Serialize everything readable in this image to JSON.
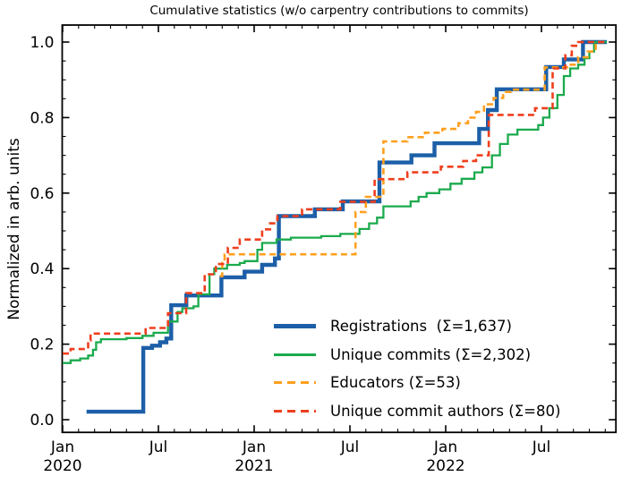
{
  "figure": {
    "title": "Cumulative statistics (w/o carpentry contributions to commits)",
    "ylabel": "Normalized in arb. units"
  },
  "chart_data": {
    "type": "line",
    "subtype": "cumulative-step",
    "title": "Cumulative statistics (w/o carpentry contributions to commits)",
    "xlabel": "",
    "ylabel": "Normalized in arb. units",
    "grid": false,
    "legend_position": "lower-right-inside",
    "x_axis": {
      "unit": "months since Jan 2020",
      "range_months": [
        0,
        34.66
      ],
      "minor_tick_every_months": 1,
      "major_ticks": [
        {
          "m": 0,
          "label": "Jan",
          "year": "2020"
        },
        {
          "m": 6,
          "label": "Jul",
          "year": ""
        },
        {
          "m": 12,
          "label": "Jan",
          "year": "2021"
        },
        {
          "m": 18,
          "label": "Jul",
          "year": ""
        },
        {
          "m": 24,
          "label": "Jan",
          "year": "2022"
        },
        {
          "m": 30,
          "label": "Jul",
          "year": ""
        }
      ]
    },
    "y_axis": {
      "range": [
        -0.033,
        1.045
      ],
      "minor_tick_step": 0.05,
      "major_ticks": [
        {
          "v": 0.0,
          "label": "0.0"
        },
        {
          "v": 0.2,
          "label": "0.2"
        },
        {
          "v": 0.4,
          "label": "0.4"
        },
        {
          "v": 0.6,
          "label": "0.6"
        },
        {
          "v": 0.8,
          "label": "0.8"
        },
        {
          "v": 1.0,
          "label": "1.0"
        }
      ]
    },
    "end_month": 34.1,
    "series": [
      {
        "name": "registrations",
        "legend_label": "Registrations  (Σ=1,637)",
        "sum": 1637,
        "color": "#1c5fa8",
        "style": "solid",
        "width": 4.4,
        "points": [
          [
            1.5,
            0.021
          ],
          [
            5.05,
            0.19
          ],
          [
            5.6,
            0.196
          ],
          [
            6.1,
            0.205
          ],
          [
            6.5,
            0.215
          ],
          [
            6.8,
            0.303
          ],
          [
            7.75,
            0.329
          ],
          [
            9.95,
            0.377
          ],
          [
            11.4,
            0.392
          ],
          [
            12.5,
            0.41
          ],
          [
            13.3,
            0.427
          ],
          [
            13.55,
            0.539
          ],
          [
            15.8,
            0.557
          ],
          [
            17.55,
            0.578
          ],
          [
            19.85,
            0.681
          ],
          [
            21.85,
            0.7
          ],
          [
            23.3,
            0.732
          ],
          [
            26.1,
            0.77
          ],
          [
            26.65,
            0.82
          ],
          [
            27.2,
            0.875
          ],
          [
            30.3,
            0.934
          ],
          [
            31.4,
            0.954
          ],
          [
            32.6,
            1.0
          ]
        ]
      },
      {
        "name": "unique-commits",
        "legend_label": "Unique commits (Σ=2,302)",
        "sum": 2302,
        "color": "#1baa4d",
        "style": "solid",
        "width": 2.3,
        "points": [
          [
            0,
            0.15
          ],
          [
            0.5,
            0.157
          ],
          [
            1.1,
            0.162
          ],
          [
            1.6,
            0.17
          ],
          [
            1.9,
            0.185
          ],
          [
            2.1,
            0.205
          ],
          [
            2.4,
            0.213
          ],
          [
            4.0,
            0.216
          ],
          [
            5.0,
            0.222
          ],
          [
            5.7,
            0.23
          ],
          [
            6.6,
            0.26
          ],
          [
            7.2,
            0.285
          ],
          [
            7.5,
            0.295
          ],
          [
            8.2,
            0.3
          ],
          [
            8.5,
            0.332
          ],
          [
            9.2,
            0.385
          ],
          [
            9.5,
            0.4
          ],
          [
            10.3,
            0.41
          ],
          [
            11.1,
            0.415
          ],
          [
            11.4,
            0.42
          ],
          [
            12.2,
            0.45
          ],
          [
            12.5,
            0.468
          ],
          [
            13.4,
            0.477
          ],
          [
            14.3,
            0.482
          ],
          [
            16.2,
            0.486
          ],
          [
            17.4,
            0.492
          ],
          [
            18.6,
            0.505
          ],
          [
            19.2,
            0.52
          ],
          [
            19.7,
            0.535
          ],
          [
            20.1,
            0.565
          ],
          [
            21.8,
            0.578
          ],
          [
            22.3,
            0.59
          ],
          [
            22.8,
            0.6
          ],
          [
            23.6,
            0.61
          ],
          [
            24.3,
            0.625
          ],
          [
            25.0,
            0.638
          ],
          [
            25.8,
            0.655
          ],
          [
            26.3,
            0.668
          ],
          [
            26.9,
            0.7
          ],
          [
            27.4,
            0.73
          ],
          [
            27.9,
            0.755
          ],
          [
            28.5,
            0.768
          ],
          [
            29.8,
            0.78
          ],
          [
            30.1,
            0.8
          ],
          [
            30.5,
            0.825
          ],
          [
            31.0,
            0.86
          ],
          [
            31.4,
            0.91
          ],
          [
            31.8,
            0.93
          ],
          [
            32.3,
            0.94
          ],
          [
            32.7,
            0.957
          ],
          [
            33.0,
            0.975
          ],
          [
            33.3,
            1.0
          ]
        ]
      },
      {
        "name": "educators",
        "legend_label": "Educators (Σ=53)",
        "sum": 53,
        "color": "#ffa01f",
        "style": "dashed",
        "width": 2.6,
        "points": [
          [
            9.85,
            0.38
          ],
          [
            10.0,
            0.415
          ],
          [
            10.15,
            0.438
          ],
          [
            18.35,
            0.55
          ],
          [
            19.0,
            0.59
          ],
          [
            20.1,
            0.737
          ],
          [
            21.6,
            0.748
          ],
          [
            22.7,
            0.76
          ],
          [
            23.8,
            0.77
          ],
          [
            24.8,
            0.785
          ],
          [
            25.4,
            0.8
          ],
          [
            25.9,
            0.815
          ],
          [
            26.4,
            0.835
          ],
          [
            27.0,
            0.852
          ],
          [
            27.6,
            0.868
          ],
          [
            28.1,
            0.874
          ],
          [
            30.2,
            0.933
          ],
          [
            31.7,
            0.94
          ],
          [
            32.3,
            0.96
          ],
          [
            32.9,
            0.975
          ],
          [
            33.4,
            1.0
          ]
        ]
      },
      {
        "name": "unique-commit-authors",
        "legend_label": "Unique commit authors (Σ=80)",
        "sum": 80,
        "color": "#ef3e1d",
        "style": "dashed",
        "width": 2.6,
        "points": [
          [
            0,
            0.175
          ],
          [
            0.5,
            0.187
          ],
          [
            1.6,
            0.21
          ],
          [
            1.75,
            0.228
          ],
          [
            5.2,
            0.243
          ],
          [
            6.6,
            0.282
          ],
          [
            7.74,
            0.335
          ],
          [
            8.9,
            0.385
          ],
          [
            9.6,
            0.412
          ],
          [
            10.35,
            0.455
          ],
          [
            11.1,
            0.477
          ],
          [
            12.5,
            0.504
          ],
          [
            13.0,
            0.52
          ],
          [
            13.45,
            0.539
          ],
          [
            15.0,
            0.557
          ],
          [
            17.4,
            0.577
          ],
          [
            19.55,
            0.637
          ],
          [
            21.6,
            0.655
          ],
          [
            23.7,
            0.67
          ],
          [
            25.1,
            0.685
          ],
          [
            25.9,
            0.7
          ],
          [
            26.7,
            0.807
          ],
          [
            29.6,
            0.825
          ],
          [
            30.7,
            0.93
          ],
          [
            31.5,
            0.965
          ],
          [
            31.9,
            0.99
          ],
          [
            32.3,
            1.0
          ]
        ]
      }
    ]
  }
}
